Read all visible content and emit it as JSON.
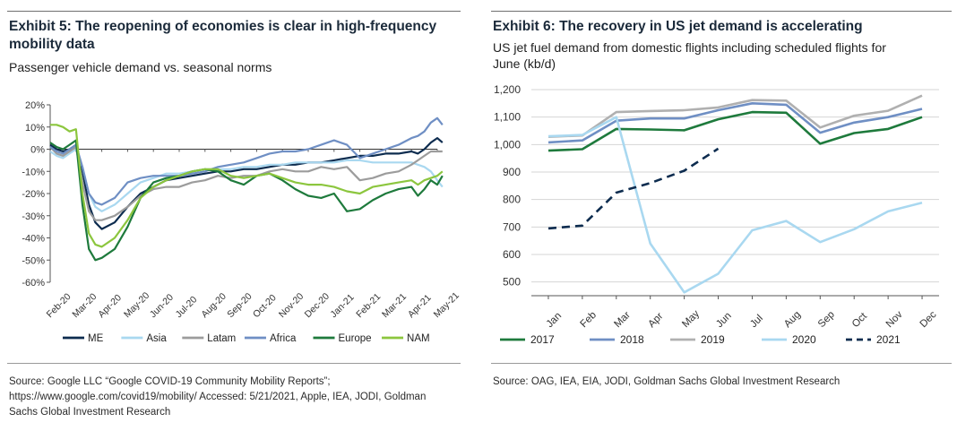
{
  "left": {
    "title": "Exhibit 5: The reopening of economies is clear in high-frequency mobility data",
    "subtitle": "Passenger vehicle demand vs. seasonal norms",
    "source_lines": [
      "Source: Google LLC “Google COVID-19 Community Mobility Reports”;",
      "https://www.google.com/covid19/mobility/ Accessed: 5/21/2021, Apple, IEA, JODI, Goldman",
      "Sachs Global Investment Research"
    ]
  },
  "right": {
    "title": "Exhibit 6: The recovery in US jet demand is accelerating",
    "subtitle_lines": [
      "US jet fuel demand from domestic flights including scheduled flights for",
      "June (kb/d)"
    ],
    "source": "Source: OAG, IEA, EIA, JODI, Goldman Sachs Global Investment Research"
  },
  "chart_data": [
    {
      "type": "line",
      "title": "Exhibit 5: The reopening of economies is clear in high-frequency mobility data",
      "subtitle": "Passenger vehicle demand vs. seasonal norms",
      "y_ticks": [
        "20%",
        "10%",
        "0%",
        "-10%",
        "-20%",
        "-30%",
        "-40%",
        "-50%",
        "-60%"
      ],
      "ylim": [
        -60,
        20
      ],
      "x_ticks": [
        "Feb-20",
        "Mar-20",
        "Apr-20",
        "May-20",
        "Jun-20",
        "Jul-20",
        "Aug-20",
        "Sep-20",
        "Oct-20",
        "Nov-20",
        "Dec-20",
        "Jan-21",
        "Feb-21",
        "Mar-21",
        "Apr-21",
        "May-21"
      ],
      "x_unit": "months",
      "zero_line": true,
      "grid": false,
      "legend_position": "bottom",
      "series": [
        {
          "name": "ME",
          "color": "#0d2c4f",
          "style": "solid",
          "x": [
            0,
            0.25,
            0.5,
            0.75,
            1,
            1.25,
            1.5,
            1.75,
            2,
            2.5,
            3,
            3.5,
            4,
            4.5,
            5,
            5.5,
            6,
            6.5,
            7,
            7.5,
            8,
            8.5,
            9,
            9.5,
            10,
            10.5,
            11,
            11.5,
            12,
            12.5,
            13,
            13.5,
            14,
            14.25,
            14.5,
            14.75,
            15,
            15.2
          ],
          "y": [
            2,
            0,
            -1,
            0,
            2,
            -10,
            -25,
            -33,
            -36,
            -33,
            -26,
            -20,
            -17,
            -14,
            -13,
            -12,
            -11,
            -10,
            -10,
            -9,
            -9,
            -8,
            -7,
            -7,
            -6,
            -6,
            -5,
            -4,
            -3,
            -3,
            -2,
            -2,
            -1,
            -2,
            0,
            3,
            5,
            3
          ]
        },
        {
          "name": "Asia",
          "color": "#a9d8f0",
          "style": "solid",
          "x": [
            0,
            0.25,
            0.5,
            0.75,
            1,
            1.25,
            1.5,
            1.75,
            2,
            2.5,
            3,
            3.5,
            4,
            4.5,
            5,
            5.5,
            6,
            6.5,
            7,
            7.5,
            8,
            8.5,
            9,
            9.5,
            10,
            10.5,
            11,
            11.5,
            12,
            12.5,
            13,
            13.5,
            14,
            14.25,
            14.5,
            14.75,
            15,
            15.2
          ],
          "y": [
            -1,
            -3,
            -4,
            -2,
            0,
            -8,
            -20,
            -26,
            -28,
            -25,
            -20,
            -15,
            -13,
            -11,
            -11,
            -10,
            -9,
            -9,
            -9,
            -8,
            -8,
            -7,
            -7,
            -6,
            -6,
            -6,
            -6,
            -5,
            -5,
            -6,
            -6,
            -6,
            -6,
            -7,
            -8,
            -10,
            -14,
            -17
          ]
        },
        {
          "name": "Latam",
          "color": "#9c9c9c",
          "style": "solid",
          "x": [
            0,
            0.25,
            0.5,
            0.75,
            1,
            1.25,
            1.5,
            1.75,
            2,
            2.5,
            3,
            3.5,
            4,
            4.5,
            5,
            5.5,
            6,
            6.5,
            7,
            7.5,
            8,
            8.5,
            9,
            9.5,
            10,
            10.5,
            11,
            11.5,
            12,
            12.5,
            13,
            13.5,
            14,
            14.25,
            14.5,
            14.75,
            15,
            15.2
          ],
          "y": [
            1,
            -2,
            -3,
            -1,
            1,
            -15,
            -28,
            -32,
            -32,
            -30,
            -26,
            -21,
            -18,
            -17,
            -17,
            -15,
            -14,
            -12,
            -13,
            -12,
            -12,
            -10,
            -9,
            -10,
            -10,
            -8,
            -9,
            -8,
            -14,
            -13,
            -11,
            -10,
            -7,
            -5,
            -3,
            -1,
            -1,
            -1
          ]
        },
        {
          "name": "Africa",
          "color": "#6f8fc4",
          "style": "solid",
          "x": [
            0,
            0.25,
            0.5,
            0.75,
            1,
            1.25,
            1.5,
            1.75,
            2,
            2.5,
            3,
            3.5,
            4,
            4.5,
            5,
            5.5,
            6,
            6.5,
            7,
            7.5,
            8,
            8.5,
            9,
            9.5,
            10,
            10.5,
            11,
            11.5,
            12,
            12.5,
            13,
            13.5,
            14,
            14.25,
            14.5,
            14.75,
            15,
            15.2
          ],
          "y": [
            1,
            -1,
            -2,
            0,
            2,
            -8,
            -20,
            -24,
            -25,
            -22,
            -15,
            -13,
            -12,
            -12,
            -12,
            -11,
            -10,
            -8,
            -7,
            -6,
            -4,
            -2,
            -1,
            -1,
            0,
            2,
            4,
            2,
            -4,
            -2,
            0,
            2,
            5,
            6,
            8,
            12,
            14,
            11
          ]
        },
        {
          "name": "Europe",
          "color": "#1e7a3c",
          "style": "solid",
          "x": [
            0,
            0.25,
            0.5,
            0.75,
            1,
            1.25,
            1.5,
            1.75,
            2,
            2.5,
            3,
            3.5,
            4,
            4.5,
            5,
            5.5,
            6,
            6.5,
            7,
            7.5,
            8,
            8.5,
            9,
            9.5,
            10,
            10.5,
            11,
            11.5,
            12,
            12.5,
            13,
            13.5,
            14,
            14.25,
            14.5,
            14.75,
            15,
            15.2
          ],
          "y": [
            3,
            1,
            0,
            2,
            4,
            -25,
            -45,
            -50,
            -49,
            -45,
            -35,
            -22,
            -15,
            -13,
            -12,
            -10,
            -9,
            -10,
            -14,
            -16,
            -12,
            -11,
            -14,
            -18,
            -21,
            -22,
            -20,
            -28,
            -27,
            -23,
            -20,
            -18,
            -17,
            -21,
            -18,
            -14,
            -16,
            -12
          ]
        },
        {
          "name": "NAM",
          "color": "#8cc63e",
          "style": "solid",
          "x": [
            0,
            0.25,
            0.5,
            0.75,
            1,
            1.25,
            1.5,
            1.75,
            2,
            2.5,
            3,
            3.5,
            4,
            4.5,
            5,
            5.5,
            6,
            6.5,
            7,
            7.5,
            8,
            8.5,
            9,
            9.5,
            10,
            10.5,
            11,
            11.5,
            12,
            12.5,
            13,
            13.5,
            14,
            14.25,
            14.5,
            14.75,
            15,
            15.2
          ],
          "y": [
            11,
            11,
            10,
            8,
            9,
            -20,
            -38,
            -43,
            -44,
            -40,
            -32,
            -22,
            -17,
            -14,
            -12,
            -10,
            -9,
            -9,
            -12,
            -13,
            -12,
            -11,
            -13,
            -15,
            -16,
            -16,
            -17,
            -19,
            -20,
            -17,
            -16,
            -15,
            -14,
            -16,
            -14,
            -13,
            -12,
            -10
          ]
        }
      ]
    },
    {
      "type": "line",
      "title": "Exhibit 6: The recovery in US jet demand is accelerating",
      "subtitle": "US jet fuel demand from domestic flights including scheduled flights for June (kb/d)",
      "categories": [
        "Jan",
        "Feb",
        "Mar",
        "Apr",
        "May",
        "Jun",
        "Jul",
        "Aug",
        "Sep",
        "Oct",
        "Nov",
        "Dec"
      ],
      "y_ticks": [
        "1,200",
        "1,100",
        "1,000",
        "900",
        "800",
        "700",
        "600",
        "500"
      ],
      "ylim": [
        450,
        1200
      ],
      "grid": true,
      "legend_position": "bottom",
      "series": [
        {
          "name": "2017",
          "color": "#1e7a3c",
          "style": "solid",
          "values": [
            978,
            983,
            1057,
            1055,
            1052,
            1092,
            1118,
            1116,
            1003,
            1042,
            1057,
            1100
          ]
        },
        {
          "name": "2018",
          "color": "#6f8fc4",
          "style": "solid",
          "values": [
            1008,
            1015,
            1087,
            1095,
            1095,
            1125,
            1150,
            1145,
            1043,
            1080,
            1100,
            1130
          ]
        },
        {
          "name": "2019",
          "color": "#b0b0b0",
          "style": "solid",
          "values": [
            1028,
            1033,
            1118,
            1122,
            1125,
            1135,
            1162,
            1160,
            1062,
            1105,
            1123,
            1178
          ]
        },
        {
          "name": "2020",
          "color": "#a9d8f0",
          "style": "solid",
          "values": [
            1030,
            1035,
            1100,
            640,
            462,
            530,
            688,
            722,
            645,
            692,
            757,
            788
          ]
        },
        {
          "name": "2021",
          "color": "#0d2c4f",
          "style": "dashed",
          "values": [
            695,
            705,
            825,
            860,
            905,
            985,
            null,
            null,
            null,
            null,
            null,
            null
          ]
        }
      ]
    }
  ]
}
